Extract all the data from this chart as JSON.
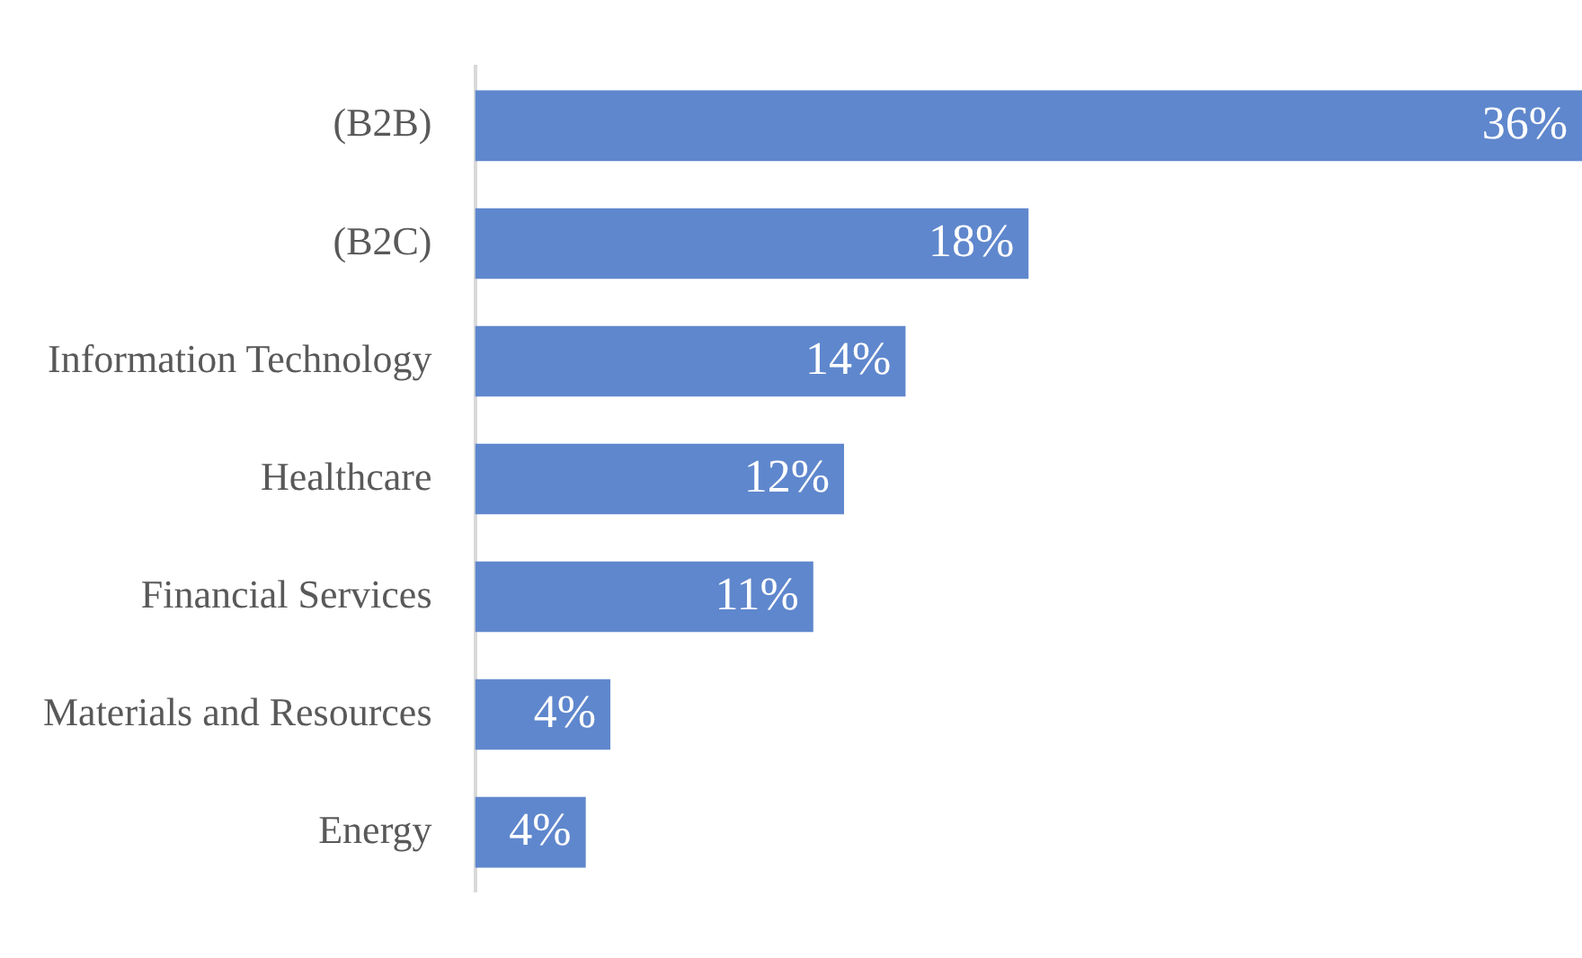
{
  "chart_data": {
    "type": "bar",
    "orientation": "horizontal",
    "categories": [
      "(B2B)",
      "(B2C)",
      "Information Technology",
      "Healthcare",
      "Financial Services",
      "Materials and Resources",
      "Energy"
    ],
    "values": [
      36,
      18,
      14,
      12,
      11,
      4.4,
      3.6
    ],
    "value_labels": [
      "36%",
      "18%",
      "14%",
      "12%",
      "11%",
      "4%",
      "4%"
    ],
    "color": "#5f87cd",
    "xlim": [
      0,
      36
    ],
    "tick_labels": "y",
    "grid": false
  }
}
